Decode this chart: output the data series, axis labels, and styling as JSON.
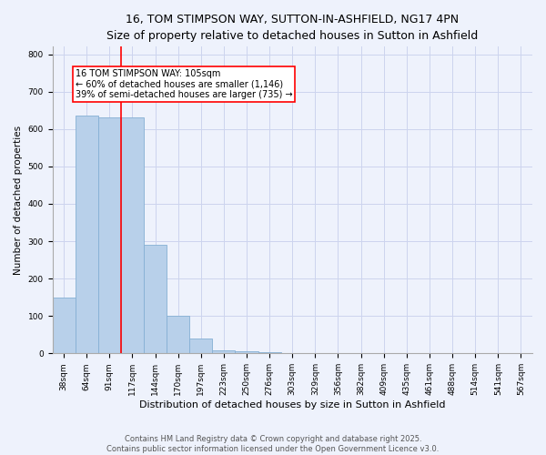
{
  "title": "16, TOM STIMPSON WAY, SUTTON-IN-ASHFIELD, NG17 4PN",
  "subtitle": "Size of property relative to detached houses in Sutton in Ashfield",
  "xlabel": "Distribution of detached houses by size in Sutton in Ashfield",
  "ylabel": "Number of detached properties",
  "categories": [
    "38sqm",
    "64sqm",
    "91sqm",
    "117sqm",
    "144sqm",
    "170sqm",
    "197sqm",
    "223sqm",
    "250sqm",
    "276sqm",
    "303sqm",
    "329sqm",
    "356sqm",
    "382sqm",
    "409sqm",
    "435sqm",
    "461sqm",
    "488sqm",
    "514sqm",
    "541sqm",
    "567sqm"
  ],
  "values": [
    150,
    635,
    630,
    630,
    290,
    100,
    40,
    8,
    5,
    3,
    2,
    1,
    1,
    1,
    0,
    0,
    0,
    0,
    0,
    0,
    0
  ],
  "bar_color": "#b8d0ea",
  "bar_edge_color": "#85afd4",
  "vline_x": 2.5,
  "vline_color": "red",
  "annotation_text": "16 TOM STIMPSON WAY: 105sqm\n← 60% of detached houses are smaller (1,146)\n39% of semi-detached houses are larger (735) →",
  "annotation_box_color": "white",
  "annotation_box_edge_color": "red",
  "footnote1": "Contains HM Land Registry data © Crown copyright and database right 2025.",
  "footnote2": "Contains public sector information licensed under the Open Government Licence v3.0.",
  "ylim": [
    0,
    820
  ],
  "yticks": [
    0,
    100,
    200,
    300,
    400,
    500,
    600,
    700,
    800
  ],
  "bg_color": "#eef2fc",
  "grid_color": "#ccd4ee",
  "title_fontsize": 9,
  "subtitle_fontsize": 8,
  "tick_fontsize": 6.5,
  "ylabel_fontsize": 7.5,
  "xlabel_fontsize": 8,
  "annot_fontsize": 7,
  "footnote_fontsize": 6
}
